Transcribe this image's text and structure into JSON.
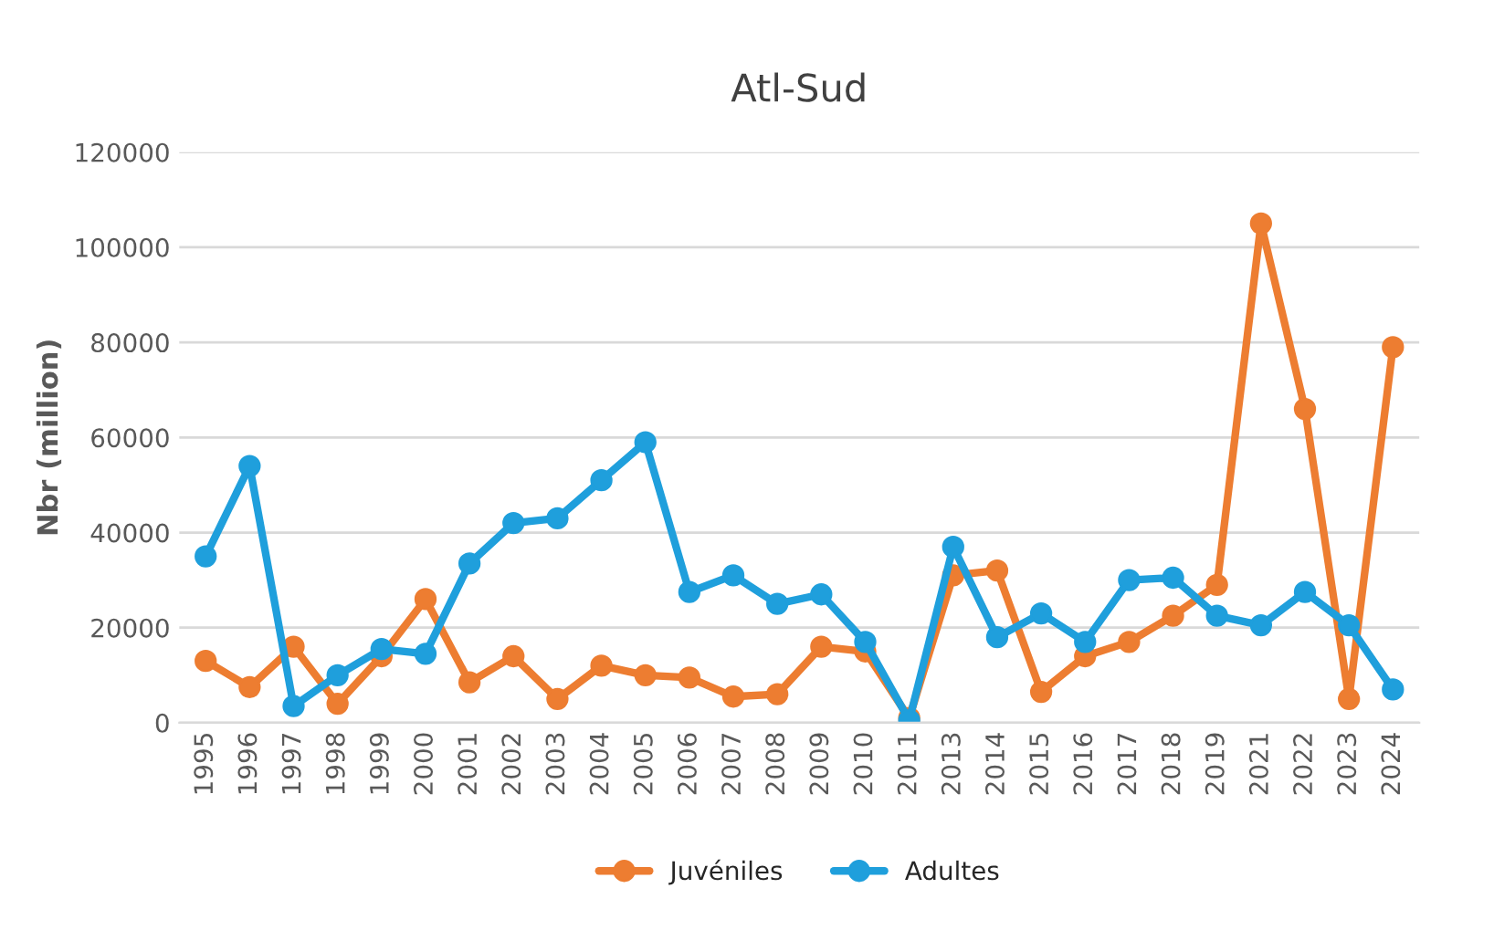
{
  "chart_data": {
    "type": "line",
    "title": "Atl-Sud",
    "ylabel": "Nbr (million)",
    "categories": [
      "1995",
      "1996",
      "1997",
      "1998",
      "1999",
      "2000",
      "2001",
      "2002",
      "2003",
      "2004",
      "2005",
      "2006",
      "2007",
      "2008",
      "2009",
      "2010",
      "2011",
      "2013",
      "2014",
      "2015",
      "2016",
      "2017",
      "2018",
      "2019",
      "2021",
      "2022",
      "2023",
      "2024"
    ],
    "series": [
      {
        "name": "Juvéniles",
        "color": "#ed7d31",
        "values": [
          13000,
          7500,
          16000,
          4000,
          14000,
          26000,
          8500,
          14000,
          5000,
          12000,
          10000,
          9500,
          5500,
          6000,
          16000,
          15000,
          1000,
          31000,
          32000,
          6500,
          14000,
          17000,
          22500,
          29000,
          105000,
          66000,
          5000,
          79000
        ]
      },
      {
        "name": "Adultes",
        "color": "#1f9fdc",
        "values": [
          35000,
          54000,
          3500,
          10000,
          15500,
          14500,
          33500,
          42000,
          43000,
          51000,
          59000,
          27500,
          31000,
          25000,
          27000,
          17000,
          500,
          37000,
          18000,
          23000,
          17000,
          30000,
          30500,
          22500,
          20500,
          27500,
          20500,
          7000
        ]
      }
    ],
    "ylim": [
      0,
      120000
    ],
    "yticks": [
      0,
      20000,
      40000,
      60000,
      80000,
      100000,
      120000
    ],
    "grid": "y",
    "legend": "bottom",
    "marker": "circle",
    "line_style": "solid"
  }
}
